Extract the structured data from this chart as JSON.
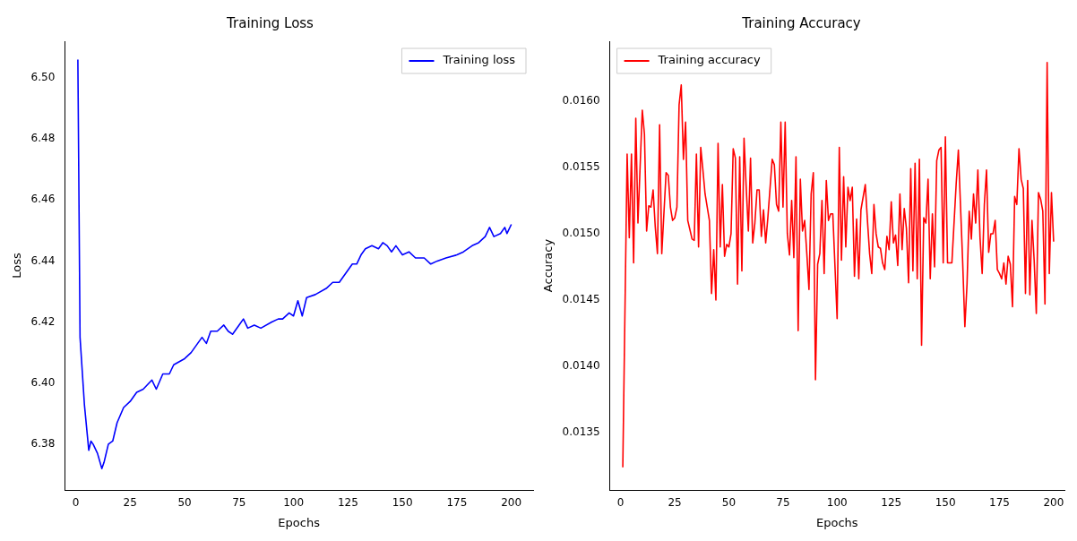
{
  "chart_data": [
    {
      "type": "line",
      "title": "Training Loss",
      "xlabel": "Epochs",
      "ylabel": "Loss",
      "legend": "top right",
      "grid": false,
      "xlim": [
        -5,
        210
      ],
      "ylim": [
        6.365,
        6.512
      ],
      "xticks": [
        0,
        25,
        50,
        75,
        100,
        125,
        150,
        175,
        200
      ],
      "yticks": [
        6.38,
        {
          "value": 6.4,
          "label": "6.40"
        },
        6.42,
        6.44,
        6.46,
        6.48,
        {
          "value": 6.5,
          "label": "6.50"
        }
      ],
      "x": [
        1,
        2,
        4,
        6,
        7,
        8,
        10,
        12,
        13,
        15,
        17,
        19,
        22,
        25,
        28,
        31,
        35,
        37,
        40,
        43,
        45,
        50,
        53,
        56,
        58,
        60,
        62,
        65,
        68,
        70,
        72,
        75,
        77,
        79,
        82,
        85,
        90,
        93,
        95,
        98,
        100,
        102,
        104,
        106,
        110,
        115,
        118,
        121,
        124,
        127,
        129,
        131,
        133,
        136,
        139,
        141,
        143,
        145,
        147,
        150,
        153,
        156,
        160,
        163,
        166,
        170,
        175,
        178,
        182,
        185,
        188,
        190,
        192,
        195,
        197,
        198,
        200
      ],
      "series": [
        {
          "name": "Training loss",
          "color": "#0000ff",
          "values": [
            6.506,
            6.415,
            6.393,
            6.378,
            6.381,
            6.38,
            6.377,
            6.372,
            6.374,
            6.38,
            6.381,
            6.387,
            6.392,
            6.394,
            6.397,
            6.398,
            6.401,
            6.398,
            6.403,
            6.403,
            6.406,
            6.408,
            6.41,
            6.413,
            6.415,
            6.413,
            6.417,
            6.417,
            6.419,
            6.417,
            6.416,
            6.419,
            6.421,
            6.418,
            6.419,
            6.418,
            6.42,
            6.421,
            6.421,
            6.423,
            6.422,
            6.427,
            6.422,
            6.428,
            6.429,
            6.431,
            6.433,
            6.433,
            6.436,
            6.439,
            6.439,
            6.442,
            6.444,
            6.445,
            6.444,
            6.446,
            6.445,
            6.443,
            6.445,
            6.442,
            6.443,
            6.441,
            6.441,
            6.439,
            6.44,
            6.441,
            6.442,
            6.443,
            6.445,
            6.446,
            6.448,
            6.451,
            6.448,
            6.449,
            6.451,
            6.449,
            6.452
          ]
        }
      ]
    },
    {
      "type": "line",
      "title": "Training Accuracy",
      "xlabel": "Epochs",
      "ylabel": "Accuracy",
      "legend": "top left",
      "grid": false,
      "xlim": [
        -5,
        205
      ],
      "ylim": [
        0.01307,
        0.01645
      ],
      "xticks": [
        0,
        25,
        50,
        75,
        100,
        125,
        150,
        175,
        200
      ],
      "yticks": [
        {
          "value": 0.0135,
          "label": "0.0135"
        },
        {
          "value": 0.014,
          "label": "0.0140"
        },
        {
          "value": 0.0145,
          "label": "0.0145"
        },
        {
          "value": 0.015,
          "label": "0.0150"
        },
        {
          "value": 0.0155,
          "label": "0.0155"
        },
        {
          "value": 0.016,
          "label": "0.0160"
        }
      ],
      "x": [
        1,
        3,
        4,
        5,
        6,
        7,
        8,
        10,
        11,
        12,
        13,
        14,
        15,
        16,
        17,
        18,
        19,
        21,
        22,
        23,
        24,
        25,
        26,
        27,
        28,
        29,
        30,
        31,
        33,
        34,
        35,
        36,
        37,
        38,
        39,
        41,
        42,
        43,
        44,
        45,
        46,
        47,
        48,
        49,
        50,
        51,
        52,
        53,
        54,
        55,
        56,
        57,
        58,
        59,
        60,
        61,
        62,
        63,
        64,
        65,
        66,
        67,
        68,
        70,
        71,
        72,
        73,
        74,
        75,
        76,
        77,
        78,
        79,
        80,
        81,
        82,
        83,
        84,
        85,
        86,
        87,
        88,
        89,
        90,
        91,
        92,
        93,
        94,
        95,
        96,
        97,
        98,
        100,
        101,
        102,
        103,
        104,
        105,
        106,
        107,
        108,
        109,
        110,
        111,
        113,
        114,
        115,
        116,
        117,
        118,
        119,
        120,
        121,
        122,
        123,
        124,
        125,
        126,
        127,
        128,
        129,
        130,
        131,
        132,
        133,
        134,
        135,
        136,
        137,
        138,
        139,
        140,
        141,
        142,
        143,
        144,
        145,
        146,
        147,
        148,
        149,
        150,
        151,
        152,
        153,
        155,
        156,
        158,
        159,
        160,
        161,
        162,
        163,
        164,
        165,
        166,
        167,
        168,
        169,
        170,
        171,
        172,
        173,
        174,
        175,
        176,
        177,
        178,
        179,
        180,
        181,
        182,
        183,
        184,
        185,
        186,
        187,
        188,
        189,
        190,
        191,
        192,
        193,
        194,
        195,
        196,
        197,
        198,
        199,
        200
      ],
      "series": [
        {
          "name": "Training accuracy",
          "color": "#ff0000",
          "values": [
            0.01324,
            0.0156,
            0.01497,
            0.0156,
            0.01478,
            0.01587,
            0.01508,
            0.01593,
            0.01575,
            0.01502,
            0.01521,
            0.0152,
            0.01533,
            0.01505,
            0.01485,
            0.01582,
            0.01485,
            0.01546,
            0.01544,
            0.0152,
            0.0151,
            0.01512,
            0.0152,
            0.01597,
            0.01612,
            0.01556,
            0.01584,
            0.0151,
            0.01496,
            0.01495,
            0.0156,
            0.0149,
            0.01565,
            0.01548,
            0.0153,
            0.0151,
            0.01455,
            0.01488,
            0.0145,
            0.01568,
            0.0149,
            0.01537,
            0.01483,
            0.01492,
            0.0149,
            0.015,
            0.01564,
            0.01557,
            0.01462,
            0.01558,
            0.01472,
            0.01572,
            0.01535,
            0.01502,
            0.01557,
            0.01493,
            0.01508,
            0.01533,
            0.01533,
            0.01498,
            0.01518,
            0.01493,
            0.01512,
            0.01556,
            0.01552,
            0.01522,
            0.01517,
            0.01584,
            0.0152,
            0.01584,
            0.015,
            0.01484,
            0.01525,
            0.01482,
            0.01558,
            0.01427,
            0.01541,
            0.01502,
            0.0151,
            0.01485,
            0.01458,
            0.0153,
            0.01546,
            0.0139,
            0.01477,
            0.01485,
            0.01525,
            0.0147,
            0.0154,
            0.0151,
            0.01515,
            0.01515,
            0.01436,
            0.01565,
            0.0148,
            0.01543,
            0.0149,
            0.01535,
            0.01525,
            0.01535,
            0.01468,
            0.01511,
            0.01466,
            0.01518,
            0.01537,
            0.0151,
            0.01485,
            0.0147,
            0.01522,
            0.015,
            0.0149,
            0.01489,
            0.01478,
            0.01473,
            0.01498,
            0.01488,
            0.01524,
            0.01493,
            0.01499,
            0.01476,
            0.0153,
            0.01488,
            0.01519,
            0.01504,
            0.01463,
            0.01549,
            0.01472,
            0.01553,
            0.01466,
            0.01556,
            0.01416,
            0.01512,
            0.01508,
            0.01541,
            0.01466,
            0.01515,
            0.01475,
            0.01555,
            0.01563,
            0.01565,
            0.01478,
            0.01573,
            0.01478,
            0.01478,
            0.01478,
            0.01538,
            0.01563,
            0.01478,
            0.0143,
            0.01462,
            0.01517,
            0.01496,
            0.0153,
            0.01508,
            0.01548,
            0.01497,
            0.0147,
            0.01522,
            0.01548,
            0.01486,
            0.015,
            0.015,
            0.0151,
            0.01473,
            0.0147,
            0.01466,
            0.01478,
            0.01462,
            0.01483,
            0.01477,
            0.01445,
            0.01528,
            0.01522,
            0.01564,
            0.01541,
            0.01534,
            0.01455,
            0.0154,
            0.01454,
            0.0151,
            0.0148,
            0.0144,
            0.01531,
            0.01526,
            0.01517,
            0.01447,
            0.01629,
            0.0147,
            0.01531,
            0.01494
          ]
        }
      ]
    }
  ]
}
